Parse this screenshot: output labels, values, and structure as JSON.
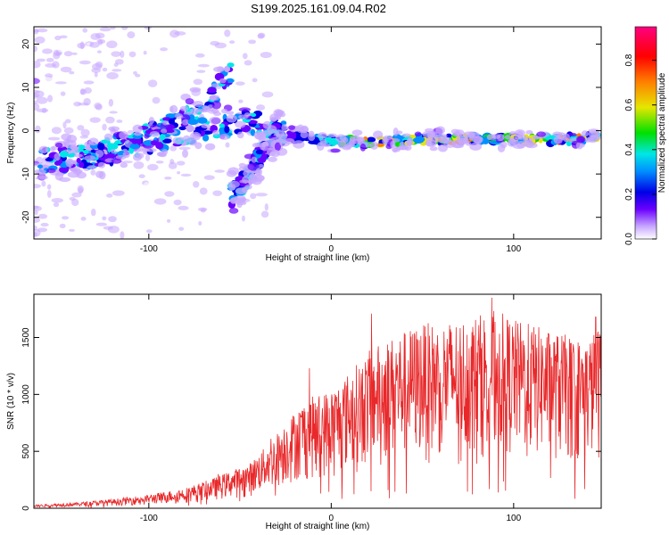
{
  "title": "S199.2025.161.09.04.R02",
  "chart_data": [
    {
      "type": "heatmap",
      "xlabel": "Height of straight line (km)",
      "ylabel": "Frequency (Hz)",
      "xlim": [
        -163,
        148
      ],
      "ylim": [
        -25,
        24
      ],
      "x_ticks": [
        -100,
        0,
        100
      ],
      "y_ticks": [
        -20,
        -10,
        0,
        10,
        20
      ],
      "colorbar": {
        "label": "Normalized spectral amplitude",
        "range": [
          0,
          0.95
        ],
        "ticks": [
          "0.0",
          "0.2",
          "0.4",
          "0.6",
          "0.8"
        ],
        "colormap": [
          "#ffffff",
          "#c7a6ff",
          "#6a00ff",
          "#0000e6",
          "#0090ff",
          "#00e6e6",
          "#00e000",
          "#e6e600",
          "#ff8000",
          "#ff0000",
          "#ff0080"
        ]
      },
      "ridges": [
        {
          "x": [
            -160,
            -140,
            -120,
            -100,
            -80,
            -65,
            -55
          ],
          "y": [
            -7,
            -6,
            -4,
            -1,
            3,
            8,
            14
          ]
        },
        {
          "x": [
            -150,
            -120,
            -95,
            -75,
            -60,
            -45,
            -30
          ],
          "y": [
            -8,
            -5,
            -2,
            0,
            1,
            2,
            1
          ]
        },
        {
          "x": [
            -55,
            -45,
            -38,
            -30,
            -25
          ],
          "y": [
            -15,
            -10,
            -5,
            -1,
            0
          ]
        },
        {
          "x": [
            -25,
            0,
            25,
            50,
            75,
            100,
            125,
            148
          ],
          "y": [
            -1,
            -2.5,
            -2.5,
            -2,
            -2,
            -2,
            -2,
            -1.5
          ]
        }
      ]
    },
    {
      "type": "line",
      "xlabel": "Height of straight line (km)",
      "ylabel": "SNR (10 * v/v)",
      "xlim": [
        -163,
        148
      ],
      "ylim": [
        0,
        1880
      ],
      "x_ticks": [
        -100,
        0,
        100
      ],
      "y_ticks": [
        0,
        500,
        1000,
        1500
      ],
      "color": "#e8282a",
      "envelope": {
        "x": [
          -163,
          -140,
          -120,
          -100,
          -80,
          -65,
          -55,
          -45,
          -35,
          -25,
          -15,
          0,
          10,
          20,
          30,
          40,
          50,
          60,
          70,
          80,
          90,
          100,
          110,
          120,
          130,
          140,
          148
        ],
        "y": [
          30,
          50,
          80,
          120,
          180,
          260,
          330,
          390,
          560,
          760,
          950,
          1050,
          1200,
          1380,
          1480,
          1560,
          1620,
          1640,
          1660,
          1700,
          1750,
          1660,
          1620,
          1560,
          1520,
          1480,
          1620
        ]
      },
      "peaks": [
        {
          "x": -62,
          "y": 300
        },
        {
          "x": -33,
          "y": 610
        },
        {
          "x": -12,
          "y": 1230
        },
        {
          "x": 22,
          "y": 1710
        },
        {
          "x": 88,
          "y": 1850
        },
        {
          "x": 145,
          "y": 1680
        }
      ]
    }
  ]
}
